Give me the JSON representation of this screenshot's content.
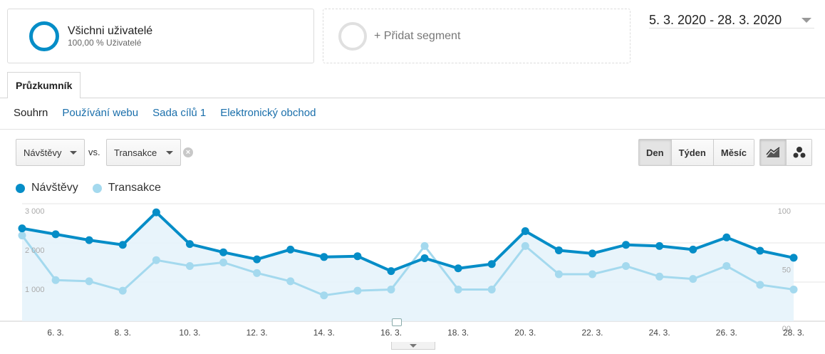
{
  "segments": {
    "all_users": {
      "title": "Všichni uživatelé",
      "subtitle": "100,00 % Uživatelé"
    },
    "add_segment": {
      "label": "+ Přidat segment"
    }
  },
  "date_range": {
    "label": "5. 3. 2020 - 28. 3. 2020"
  },
  "tabs": {
    "explorer": "Průzkumník"
  },
  "subnav": {
    "items": [
      "Souhrn",
      "Používání webu",
      "Sada cílů 1",
      "Elektronický obchod"
    ]
  },
  "controls": {
    "metric1": "Návštěvy",
    "vs": "vs.",
    "metric2": "Transakce",
    "periods": [
      "Den",
      "Týden",
      "Měsíc"
    ],
    "selected_period": "Den"
  },
  "icons": {
    "segment_ring": "circle-ring-icon",
    "date_caret": "chevron-down-icon",
    "clear": "close-circle-icon",
    "line_chart": "line-chart-icon",
    "motion_chart": "bubble-chart-icon",
    "annotation": "annotation-icon",
    "expand": "expand-down-icon"
  },
  "colors": {
    "series1": "#058dc7",
    "series2": "#a4d9ee",
    "area_fill": "#e6f3fb"
  },
  "chart_data": {
    "type": "line",
    "grid": true,
    "legend_position": "top-left",
    "x": [
      "5. 3.",
      "6. 3.",
      "7. 3.",
      "8. 3.",
      "9. 3.",
      "10. 3.",
      "11. 3.",
      "12. 3.",
      "13. 3.",
      "14. 3.",
      "15. 3.",
      "16. 3.",
      "17. 3.",
      "18. 3.",
      "19. 3.",
      "20. 3.",
      "21. 3.",
      "22. 3.",
      "23. 3.",
      "24. 3.",
      "25. 3.",
      "26. 3.",
      "27. 3.",
      "28. 3."
    ],
    "tick_labels": [
      "6. 3.",
      "8. 3.",
      "10. 3.",
      "12. 3.",
      "14. 3.",
      "16. 3.",
      "18. 3.",
      "20. 3.",
      "22. 3.",
      "24. 3.",
      "26. 3.",
      "28. 3."
    ],
    "y_left": {
      "ticks": [
        "3 000",
        "2 000",
        "1 000"
      ],
      "range": [
        0,
        3000
      ]
    },
    "y_right": {
      "ticks": [
        "100",
        "50",
        "00"
      ],
      "range": [
        0,
        100
      ]
    },
    "series": [
      {
        "name": "Návštěvy",
        "axis": "left",
        "values": [
          2370,
          2220,
          2070,
          1950,
          2780,
          1970,
          1760,
          1580,
          1830,
          1640,
          1660,
          1280,
          1610,
          1350,
          1460,
          2300,
          1810,
          1730,
          1950,
          1920,
          1830,
          2140,
          1800,
          1620
        ]
      },
      {
        "name": "Transakce",
        "axis": "right",
        "values": [
          73,
          35,
          34,
          26,
          52,
          47,
          50,
          41,
          34,
          22,
          26,
          27,
          64,
          27,
          27,
          64,
          40,
          40,
          47,
          38,
          36,
          47,
          31,
          27
        ]
      }
    ]
  }
}
